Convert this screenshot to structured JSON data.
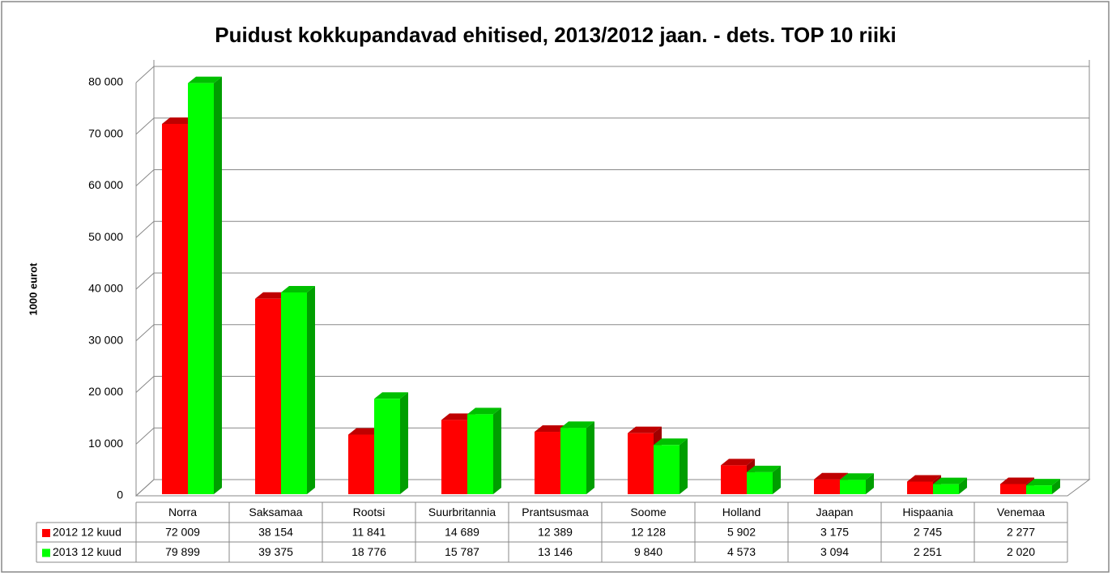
{
  "chart_data": {
    "type": "bar3d",
    "title": "Puidust kokkupandavad ehitised, 2013/2012 jaan. - dets. TOP 10 riiki",
    "y_label": "1000 eurot",
    "categories": [
      "Norra",
      "Saksamaa",
      "Rootsi",
      "Suurbritannia",
      "Prantsusmaa",
      "Soome",
      "Holland",
      "Jaapan",
      "Hispaania",
      "Venemaa"
    ],
    "series": [
      {
        "name": "2012 12 kuud",
        "color": "#ff0000",
        "values": [
          72009,
          38154,
          11841,
          14689,
          12389,
          12128,
          5902,
          3175,
          2745,
          2277
        ],
        "value_labels": [
          "72 009",
          "38 154",
          "11 841",
          "14 689",
          "12 389",
          "12 128",
          "5 902",
          "3 175",
          "2 745",
          "2 277"
        ]
      },
      {
        "name": "2013 12 kuud",
        "color": "#00ff00",
        "values": [
          79899,
          39375,
          18776,
          15787,
          13146,
          9840,
          4573,
          3094,
          2251,
          2020
        ],
        "value_labels": [
          "79 899",
          "39 375",
          "18 776",
          "15 787",
          "13 146",
          "9 840",
          "4 573",
          "3 094",
          "2 251",
          "2 020"
        ]
      }
    ],
    "ylim": [
      0,
      80000
    ],
    "yticks": [
      0,
      {
        "value": 10000,
        "label": "10 000"
      },
      {
        "value": 20000,
        "label": "20 000"
      },
      {
        "value": 30000,
        "label": "30 000"
      },
      {
        "value": 40000,
        "label": "40 000"
      },
      {
        "value": 50000,
        "label": "50 000"
      },
      {
        "value": 60000,
        "label": "60 000"
      },
      {
        "value": 70000,
        "label": "70 000"
      },
      {
        "value": 80000,
        "label": "80 000"
      }
    ],
    "grid": true
  }
}
